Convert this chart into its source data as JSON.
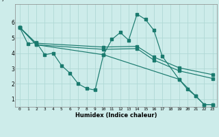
{
  "xlabel": "Humidex (Indice chaleur)",
  "xlim": [
    -0.5,
    23.5
  ],
  "ylim": [
    0.5,
    7.2
  ],
  "yticks": [
    1,
    2,
    3,
    4,
    5,
    6
  ],
  "xticks": [
    0,
    1,
    2,
    3,
    4,
    5,
    6,
    7,
    8,
    9,
    10,
    11,
    12,
    13,
    14,
    15,
    16,
    17,
    18,
    19,
    20,
    21,
    22,
    23
  ],
  "bg_color": "#cdecea",
  "grid_color": "#b0d8d5",
  "line_color": "#1a7a6e",
  "lines": [
    {
      "x": [
        0,
        1,
        2,
        3,
        4,
        5,
        6,
        7,
        8,
        9,
        10,
        11,
        12,
        13,
        14,
        15,
        16,
        17,
        19,
        20,
        21,
        22,
        23
      ],
      "y": [
        5.7,
        4.6,
        4.7,
        3.9,
        4.0,
        3.2,
        2.7,
        2.0,
        1.7,
        1.6,
        3.9,
        4.9,
        5.35,
        4.85,
        6.55,
        6.2,
        5.5,
        3.8,
        2.3,
        1.65,
        1.2,
        0.65,
        0.65
      ]
    },
    {
      "x": [
        0,
        2,
        10,
        14,
        16,
        19,
        23
      ],
      "y": [
        5.7,
        4.65,
        4.4,
        4.45,
        3.75,
        3.05,
        2.6
      ]
    },
    {
      "x": [
        0,
        2,
        10,
        14,
        16,
        19,
        23
      ],
      "y": [
        5.7,
        4.55,
        4.25,
        4.3,
        3.55,
        2.85,
        2.35
      ]
    },
    {
      "x": [
        0,
        2,
        10,
        19,
        21,
        22,
        23
      ],
      "y": [
        5.7,
        4.55,
        3.9,
        2.3,
        1.2,
        0.65,
        0.65
      ]
    }
  ]
}
